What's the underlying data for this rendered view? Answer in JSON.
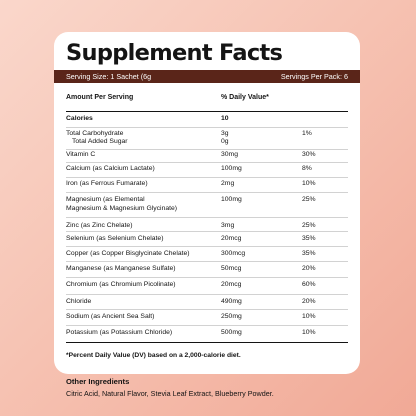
{
  "panel": {
    "title": "Supplement Facts",
    "serving_size": "Serving Size: 1 Sachet (6g",
    "servings_per_pack": "Servings Per Pack: 6",
    "header_amount": "Amount Per Serving",
    "header_dv": "% Daily Value*",
    "calories": {
      "name": "Calories",
      "amount": "10"
    },
    "nutrients": [
      {
        "name": "Total Carbohydrate",
        "name2": "Total Added Sugar",
        "amount": "3g",
        "amount2": "0g",
        "dv": "1%"
      },
      {
        "name": "Vitamin C",
        "amount": "30mg",
        "dv": "30%"
      },
      {
        "name": "Calcium (as Calcium Lactate)",
        "amount": "100mg",
        "dv": "8%"
      },
      {
        "name": "Iron (as Ferrous Fumarate)",
        "amount": "2mg",
        "dv": "10%"
      },
      {
        "name": "Magnesium (as Elemental",
        "name2": "Magnesium & Magnesium Glycinate)",
        "amount": "100mg",
        "dv": "25%"
      },
      {
        "name": "Zinc (as Zinc Chelate)",
        "amount": "3mg",
        "dv": "25%"
      },
      {
        "name": "Selenium (as Selenium Chelate)",
        "amount": "20mcg",
        "dv": "35%"
      },
      {
        "name": "Copper (as Copper Bisglycinate Chelate)",
        "amount": "300mcg",
        "dv": "35%"
      },
      {
        "name": "Manganese (as Manganese Sulfate)",
        "amount": "50mcg",
        "dv": "20%"
      },
      {
        "name": "Chromium (as Chromium Picolinate)",
        "amount": "20mcg",
        "dv": "60%"
      },
      {
        "name": "Chloride",
        "amount": "490mg",
        "dv": "20%"
      },
      {
        "name": "Sodium (as Ancient Sea Salt)",
        "amount": "250mg",
        "dv": "10%"
      },
      {
        "name": "Potassium (as Potassium Chloride)",
        "amount": "500mg",
        "dv": "10%"
      }
    ],
    "footnote": "*Percent Daily Value (DV) based on a 2,000-calorie diet."
  },
  "ingredients": {
    "title": "Other Ingredients",
    "text": "Citric Acid, Natural Flavor, Stevia Leaf Extract, Blueberry Powder."
  },
  "colors": {
    "background": "#f6c3b3",
    "serving_bar": "#5a2519"
  }
}
